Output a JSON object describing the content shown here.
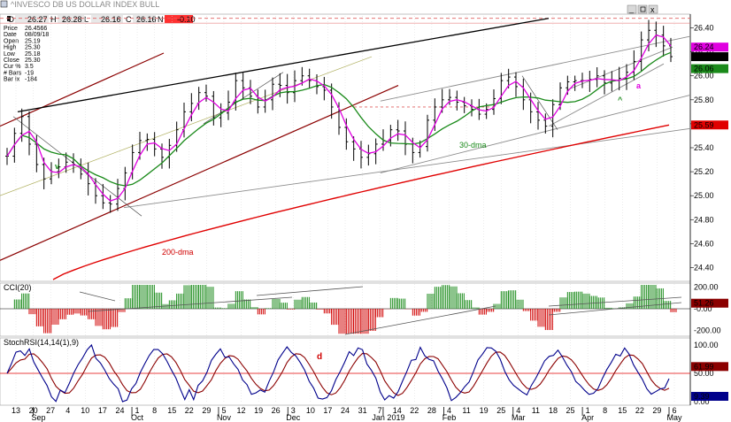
{
  "toolbar": {
    "symbol": "^INVESCO DB US DOLLAR INDEX BULL",
    "open_label": "O",
    "open": "26.27",
    "high_label": "H",
    "high": "26.28",
    "low_label": "L",
    "low": "26.16",
    "close_label": "C",
    "close": "26.16",
    "change_label": "N",
    "change": "-0.10"
  },
  "info_box": [
    {
      "label": "Price",
      "value": "26.4566"
    },
    {
      "label": "Date",
      "value": "08/09/18"
    },
    {
      "label": "Open",
      "value": "25.19"
    },
    {
      "label": "High",
      "value": "25.30"
    },
    {
      "label": "Low",
      "value": "25.18"
    },
    {
      "label": "Close",
      "value": "25.30"
    },
    {
      "label": "Cur %",
      "value": "3.5"
    },
    {
      "label": "# Bars",
      "value": "-19"
    },
    {
      "label": "Bar Ix",
      "value": "-184"
    }
  ],
  "colors": {
    "bars": "#000000",
    "ma_fast": "#e000e0",
    "ma_mid": "#1a8a1a",
    "ma_slow": "#e00000",
    "channel_dark": "#8b0000",
    "trend_black": "#000000",
    "trend_gray": "#8c8c8c",
    "cci_pos": "#1a8a1a",
    "cci_neg": "#d00000",
    "stoch_fast": "#00008b",
    "stoch_slow": "#8b0000",
    "level_red": "#e00000"
  },
  "chart_data": {
    "type": "line",
    "title": "",
    "price_panel": {
      "ylim": [
        24.3,
        26.5
      ],
      "y_ticks": [
        26.4,
        26.2,
        26.0,
        25.8,
        25.6,
        25.4,
        25.2,
        25.0,
        24.8,
        24.6,
        24.4
      ],
      "y_tick_labels": [
        "26.40",
        "26.20",
        "26.00",
        "25.80",
        "25.60",
        "25.40",
        "25.20",
        "25.00",
        "24.80",
        "24.60",
        "24.40"
      ],
      "value_tags": [
        {
          "label": "26.24",
          "value": 26.24,
          "color": "#e000e0"
        },
        {
          "label": "26.16",
          "value": 26.16,
          "color": "#000000"
        },
        {
          "label": "26.06",
          "value": 26.06,
          "color": "#1a8a1a"
        },
        {
          "label": "25.59",
          "value": 25.59,
          "color": "#e00000"
        }
      ],
      "closes": [
        25.33,
        25.52,
        25.66,
        25.43,
        25.26,
        25.14,
        25.2,
        25.24,
        25.28,
        25.26,
        25.18,
        25.1,
        25.0,
        24.94,
        24.93,
        25.06,
        25.19,
        25.36,
        25.46,
        25.47,
        25.39,
        25.32,
        25.42,
        25.55,
        25.7,
        25.77,
        25.86,
        25.83,
        25.65,
        25.69,
        25.78,
        25.96,
        25.9,
        25.83,
        25.74,
        25.8,
        25.93,
        25.92,
        25.86,
        25.96,
        26.0,
        25.96,
        25.91,
        25.88,
        25.74,
        25.57,
        25.45,
        25.39,
        25.32,
        25.35,
        25.43,
        25.46,
        25.55,
        25.54,
        25.43,
        25.36,
        25.41,
        25.63,
        25.74,
        25.8,
        25.82,
        25.78,
        25.75,
        25.72,
        25.68,
        25.72,
        25.81,
        25.96,
        25.99,
        25.91,
        25.8,
        25.7,
        25.63,
        25.58,
        25.76,
        25.9,
        25.95,
        25.96,
        25.96,
        25.97,
        26.0,
        25.94,
        25.96,
        25.98,
        26.03,
        26.12,
        26.3,
        26.38,
        26.34,
        26.25,
        26.16
      ],
      "ma_fast_label": "",
      "ma_mid_label": "30-dma",
      "ma_slow_label": "200-dma",
      "annotations": [
        {
          "text": "v",
          "color": "#1a8a1a"
        },
        {
          "text": "^",
          "color": "#1a8a1a"
        },
        {
          "text": "a",
          "color": "#e000e0"
        }
      ]
    },
    "x_axis": {
      "day_labels": [
        "13",
        "20",
        "27",
        "4",
        "10",
        "17",
        "24",
        "1",
        "8",
        "15",
        "22",
        "29",
        "5",
        "12",
        "19",
        "26",
        "3",
        "10",
        "17",
        "24",
        "31",
        "7",
        "14",
        "22",
        "28",
        "4",
        "11",
        "19",
        "25",
        "4",
        "11",
        "18",
        "25",
        "1",
        "8",
        "15",
        "22",
        "29",
        "6"
      ],
      "month_labels": [
        "Sep",
        "Oct",
        "Nov",
        "Dec",
        "Jan 2019",
        "Feb",
        "Mar",
        "Apr",
        "May"
      ]
    },
    "cci_panel": {
      "title": "CCI(20)",
      "y_ticks": [
        200,
        0,
        -200
      ],
      "y_tick_labels": [
        "200.00",
        "-0.00",
        "-200.00"
      ],
      "current_label": "51.26",
      "current": 51.26
    },
    "stoch_panel": {
      "title": "StochRSI(14,14(1),9)",
      "y_ticks": [
        100,
        50,
        0
      ],
      "y_tick_labels": [
        "100.00",
        "50.00",
        "0.00"
      ],
      "tags": [
        {
          "label": "61.99",
          "value": 61.99,
          "color": "#8b0000"
        },
        {
          "label": "9.39",
          "value": 9.39,
          "color": "#00008b"
        }
      ],
      "annotation": {
        "text": "d",
        "color": "#d00000"
      }
    }
  }
}
